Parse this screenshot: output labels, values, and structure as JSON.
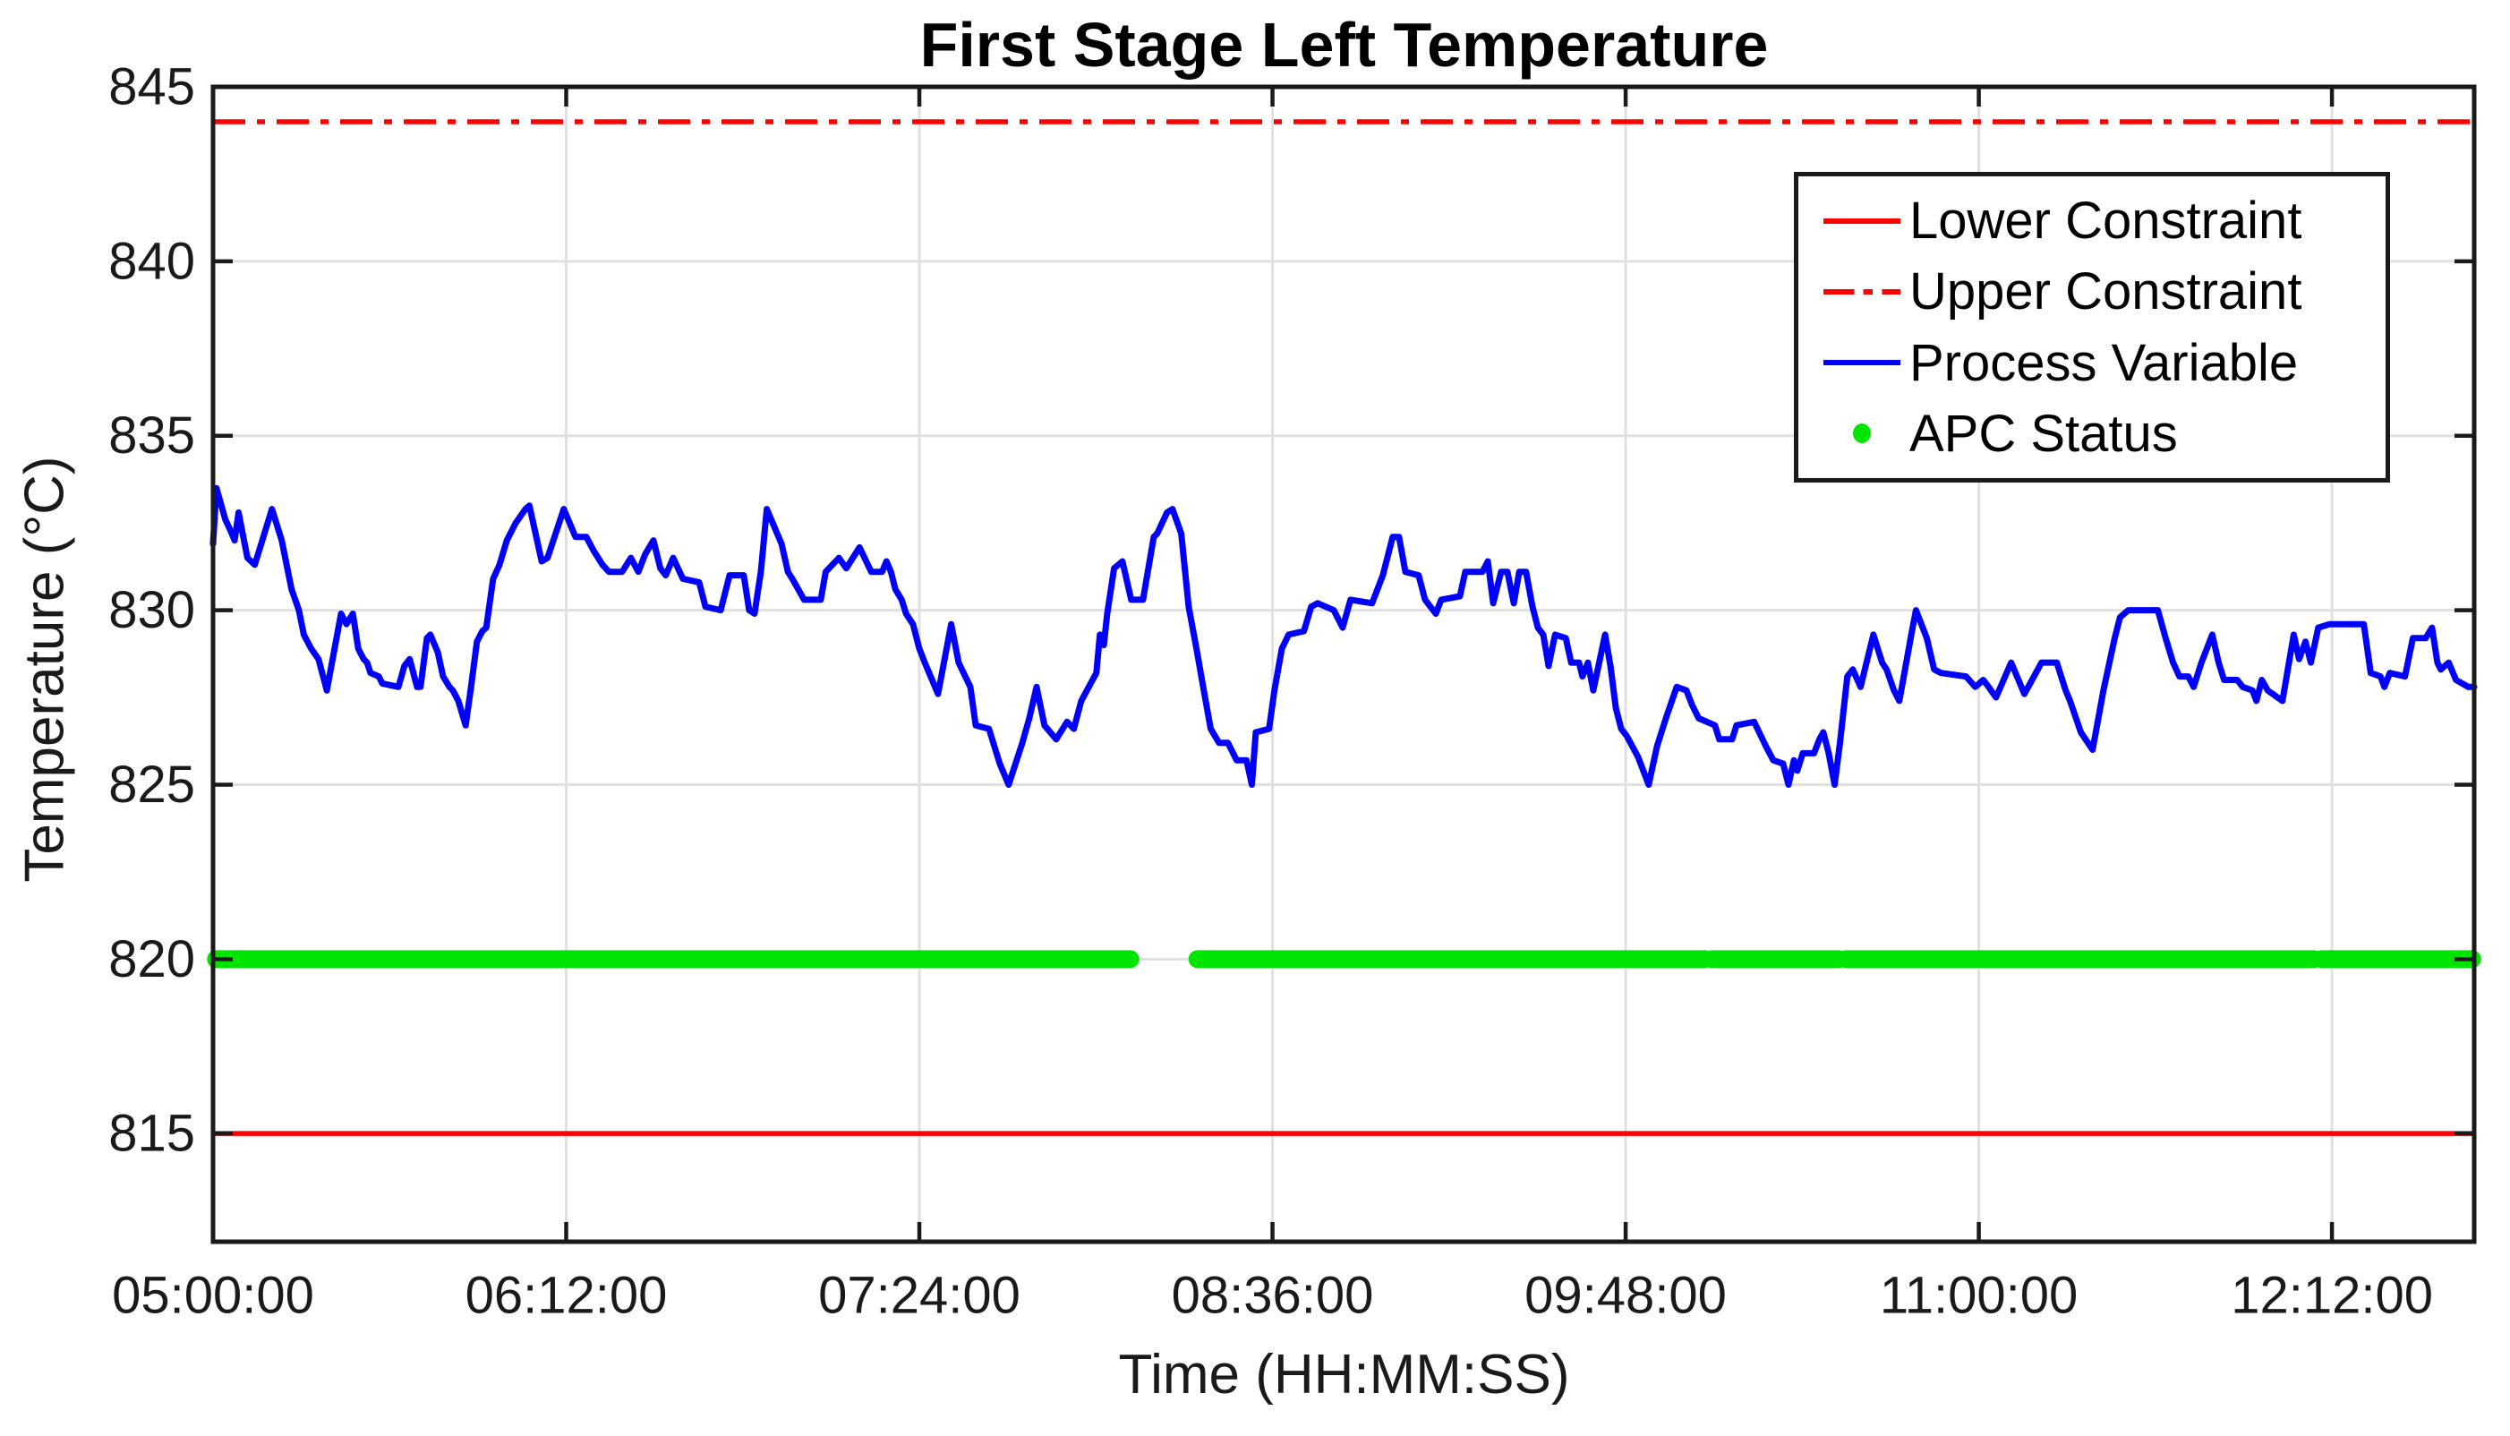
{
  "chart_data": {
    "type": "line",
    "title": "First Stage Left Temperature",
    "xlabel": "Time (HH:MM:SS)",
    "ylabel": "Temperature (°C)",
    "grid": true,
    "x_axis": {
      "unit": "minutes after 05:00:00",
      "xlim": [
        0,
        461
      ],
      "tick_minutes": [
        0,
        72,
        144,
        216,
        288,
        360,
        432
      ],
      "tick_labels": [
        "05:00:00",
        "06:12:00",
        "07:24:00",
        "08:36:00",
        "09:48:00",
        "11:00:00",
        "12:12:00"
      ]
    },
    "y_axis": {
      "ylim": [
        811.9,
        845
      ],
      "ticks": [
        815,
        820,
        825,
        830,
        835,
        840,
        845
      ]
    },
    "legend": {
      "position": "top-right",
      "entries": [
        {
          "label": "Lower Constraint",
          "marker": "solid-line",
          "color": "#ff0000"
        },
        {
          "label": "Upper Constraint",
          "marker": "dashdot-line",
          "color": "#ff0000"
        },
        {
          "label": "Process Variable",
          "marker": "solid-line",
          "color": "#0000ff"
        },
        {
          "label": "APC Status",
          "marker": "dot",
          "color": "#00e400"
        }
      ]
    },
    "series": [
      {
        "name": "Lower Constraint",
        "type": "hline",
        "y": 815,
        "style": "solid",
        "color": "#ff0000"
      },
      {
        "name": "Upper Constraint",
        "type": "hline",
        "y": 844,
        "style": "dashdot",
        "color": "#ff0000"
      },
      {
        "name": "APC Status",
        "type": "marker-band",
        "y": 820,
        "color": "#00e400",
        "segments_minutes": [
          [
            0.6,
            187.0
          ],
          [
            200.7,
            304.2
          ],
          [
            305.6,
            331.5
          ],
          [
            332.9,
            428.4
          ],
          [
            429.9,
            460.6
          ]
        ]
      },
      {
        "name": "Process Variable",
        "type": "line",
        "color": "#0000ff",
        "points": [
          [
            0,
            831.9
          ],
          [
            0.7,
            833.5
          ],
          [
            2.5,
            832.6
          ],
          [
            3.5,
            832.3
          ],
          [
            4.4,
            832.0
          ],
          [
            5.2,
            832.8
          ],
          [
            7.0,
            831.5
          ],
          [
            8.5,
            831.3
          ],
          [
            12.0,
            832.9
          ],
          [
            14.0,
            832.0
          ],
          [
            16.0,
            830.6
          ],
          [
            17.5,
            830.0
          ],
          [
            18.5,
            829.3
          ],
          [
            20.0,
            828.9
          ],
          [
            21.5,
            828.6
          ],
          [
            23.2,
            827.7
          ],
          [
            26.1,
            829.9
          ],
          [
            27.2,
            829.6
          ],
          [
            28.5,
            829.9
          ],
          [
            29.6,
            828.9
          ],
          [
            30.7,
            828.6
          ],
          [
            31.4,
            828.5
          ],
          [
            32.1,
            828.2
          ],
          [
            33.8,
            828.1
          ],
          [
            34.5,
            827.9
          ],
          [
            37.8,
            827.8
          ],
          [
            39.0,
            828.4
          ],
          [
            40.1,
            828.6
          ],
          [
            41.6,
            827.8
          ],
          [
            42.3,
            827.8
          ],
          [
            43.6,
            829.2
          ],
          [
            44.3,
            829.3
          ],
          [
            45.8,
            828.8
          ],
          [
            46.9,
            828.1
          ],
          [
            48.2,
            827.8
          ],
          [
            48.9,
            827.7
          ],
          [
            50.0,
            827.4
          ],
          [
            51.5,
            826.7
          ],
          [
            52.5,
            827.7
          ],
          [
            53.8,
            829.1
          ],
          [
            54.9,
            829.4
          ],
          [
            55.7,
            829.5
          ],
          [
            57.1,
            830.9
          ],
          [
            58.4,
            831.3
          ],
          [
            59.9,
            832.0
          ],
          [
            61.7,
            832.5
          ],
          [
            63.7,
            832.9
          ],
          [
            64.5,
            833.0
          ],
          [
            67.0,
            831.4
          ],
          [
            68.2,
            831.5
          ],
          [
            71.5,
            832.9
          ],
          [
            73.9,
            832.1
          ],
          [
            76.1,
            832.1
          ],
          [
            77.6,
            831.7
          ],
          [
            79.4,
            831.3
          ],
          [
            80.7,
            831.1
          ],
          [
            83.4,
            831.1
          ],
          [
            85.2,
            831.5
          ],
          [
            86.7,
            831.1
          ],
          [
            88.1,
            831.6
          ],
          [
            89.8,
            832.0
          ],
          [
            91.2,
            831.2
          ],
          [
            92.3,
            831.0
          ],
          [
            93.8,
            831.5
          ],
          [
            95.8,
            830.9
          ],
          [
            99.1,
            830.8
          ],
          [
            100.4,
            830.1
          ],
          [
            103.5,
            830.0
          ],
          [
            105.3,
            831.0
          ],
          [
            108.2,
            831.0
          ],
          [
            109.3,
            830.0
          ],
          [
            110.4,
            829.9
          ],
          [
            111.7,
            831.1
          ],
          [
            112.9,
            832.9
          ],
          [
            115.9,
            831.9
          ],
          [
            117.2,
            831.1
          ],
          [
            118.1,
            830.9
          ],
          [
            120.5,
            830.3
          ],
          [
            123.9,
            830.3
          ],
          [
            124.9,
            831.1
          ],
          [
            127.6,
            831.5
          ],
          [
            129.1,
            831.2
          ],
          [
            131.8,
            831.8
          ],
          [
            134.2,
            831.1
          ],
          [
            136.4,
            831.1
          ],
          [
            137.3,
            831.4
          ],
          [
            138.2,
            831.1
          ],
          [
            139.1,
            830.6
          ],
          [
            140.4,
            830.3
          ],
          [
            141.3,
            829.9
          ],
          [
            142.7,
            829.6
          ],
          [
            144.0,
            828.9
          ],
          [
            145.1,
            828.5
          ],
          [
            147.8,
            827.6
          ],
          [
            150.5,
            829.6
          ],
          [
            152.0,
            828.5
          ],
          [
            154.4,
            827.8
          ],
          [
            155.5,
            826.7
          ],
          [
            158.2,
            826.6
          ],
          [
            160.4,
            825.6
          ],
          [
            162.2,
            825.0
          ],
          [
            165.0,
            826.2
          ],
          [
            166.4,
            826.9
          ],
          [
            167.9,
            827.8
          ],
          [
            169.5,
            826.7
          ],
          [
            171.9,
            826.3
          ],
          [
            174.1,
            826.8
          ],
          [
            175.5,
            826.6
          ],
          [
            177.0,
            827.4
          ],
          [
            180.1,
            828.2
          ],
          [
            180.8,
            829.3
          ],
          [
            181.6,
            829.0
          ],
          [
            182.3,
            829.9
          ],
          [
            183.7,
            831.2
          ],
          [
            185.4,
            831.4
          ],
          [
            187.2,
            830.3
          ],
          [
            189.6,
            830.3
          ],
          [
            190.7,
            831.2
          ],
          [
            191.8,
            832.1
          ],
          [
            192.5,
            832.2
          ],
          [
            194.5,
            832.8
          ],
          [
            195.6,
            832.9
          ],
          [
            197.4,
            832.2
          ],
          [
            198.9,
            830.1
          ],
          [
            200.5,
            828.9
          ],
          [
            202.0,
            827.7
          ],
          [
            203.4,
            826.6
          ],
          [
            205.1,
            826.2
          ],
          [
            206.9,
            826.2
          ],
          [
            208.7,
            825.7
          ],
          [
            210.7,
            825.7
          ],
          [
            211.8,
            825.0
          ],
          [
            212.6,
            826.5
          ],
          [
            215.3,
            826.6
          ],
          [
            216.4,
            827.7
          ],
          [
            217.9,
            828.9
          ],
          [
            219.3,
            829.3
          ],
          [
            222.4,
            829.4
          ],
          [
            223.9,
            830.1
          ],
          [
            225.2,
            830.2
          ],
          [
            228.5,
            830.0
          ],
          [
            230.3,
            829.5
          ],
          [
            231.9,
            830.3
          ],
          [
            236.3,
            830.2
          ],
          [
            238.5,
            831.0
          ],
          [
            240.5,
            832.1
          ],
          [
            241.8,
            832.1
          ],
          [
            243.1,
            831.1
          ],
          [
            245.8,
            831.0
          ],
          [
            247.1,
            830.3
          ],
          [
            249.3,
            829.9
          ],
          [
            250.4,
            830.3
          ],
          [
            254.2,
            830.4
          ],
          [
            255.3,
            831.1
          ],
          [
            258.8,
            831.1
          ],
          [
            259.9,
            831.4
          ],
          [
            261.0,
            830.2
          ],
          [
            262.6,
            831.1
          ],
          [
            263.9,
            831.1
          ],
          [
            265.2,
            830.2
          ],
          [
            266.3,
            831.1
          ],
          [
            267.7,
            831.1
          ],
          [
            269.0,
            830.1
          ],
          [
            270.1,
            829.5
          ],
          [
            271.2,
            829.3
          ],
          [
            272.3,
            828.4
          ],
          [
            273.6,
            829.3
          ],
          [
            275.8,
            829.2
          ],
          [
            276.9,
            828.5
          ],
          [
            278.5,
            828.5
          ],
          [
            279.2,
            828.1
          ],
          [
            280.3,
            828.5
          ],
          [
            281.4,
            827.7
          ],
          [
            283.8,
            829.3
          ],
          [
            284.9,
            828.4
          ],
          [
            286.0,
            827.2
          ],
          [
            287.1,
            826.6
          ],
          [
            288.2,
            826.4
          ],
          [
            290.5,
            825.8
          ],
          [
            292.7,
            825.0
          ],
          [
            294.4,
            826.1
          ],
          [
            296.2,
            826.9
          ],
          [
            298.4,
            827.8
          ],
          [
            300.4,
            827.7
          ],
          [
            301.5,
            827.3
          ],
          [
            302.9,
            826.9
          ],
          [
            306.2,
            826.7
          ],
          [
            307.1,
            826.3
          ],
          [
            309.7,
            826.3
          ],
          [
            310.6,
            826.7
          ],
          [
            314.2,
            826.8
          ],
          [
            316.6,
            826.1
          ],
          [
            318.1,
            825.7
          ],
          [
            320.1,
            825.6
          ],
          [
            321.2,
            825.0
          ],
          [
            322.3,
            825.7
          ],
          [
            323.0,
            825.4
          ],
          [
            324.1,
            825.9
          ],
          [
            326.4,
            825.9
          ],
          [
            327.5,
            826.3
          ],
          [
            328.3,
            826.5
          ],
          [
            329.4,
            825.9
          ],
          [
            330.6,
            825.0
          ],
          [
            331.7,
            826.2
          ],
          [
            333.2,
            828.1
          ],
          [
            334.3,
            828.3
          ],
          [
            335.9,
            827.8
          ],
          [
            338.5,
            829.3
          ],
          [
            340.3,
            828.5
          ],
          [
            341.2,
            828.3
          ],
          [
            342.7,
            827.7
          ],
          [
            343.8,
            827.4
          ],
          [
            346.5,
            829.5
          ],
          [
            347.2,
            830.0
          ],
          [
            349.4,
            829.2
          ],
          [
            350.9,
            828.3
          ],
          [
            352.3,
            828.2
          ],
          [
            357.4,
            828.1
          ],
          [
            359.3,
            827.8
          ],
          [
            360.9,
            828.0
          ],
          [
            362.0,
            827.8
          ],
          [
            363.5,
            827.5
          ],
          [
            366.6,
            828.5
          ],
          [
            369.3,
            827.6
          ],
          [
            372.8,
            828.5
          ],
          [
            375.9,
            828.5
          ],
          [
            377.7,
            827.7
          ],
          [
            378.6,
            827.4
          ],
          [
            380.8,
            826.5
          ],
          [
            383.2,
            826.0
          ],
          [
            385.4,
            827.7
          ],
          [
            387.7,
            829.2
          ],
          [
            388.8,
            829.8
          ],
          [
            390.5,
            830.0
          ],
          [
            396.5,
            830.0
          ],
          [
            398.1,
            829.2
          ],
          [
            399.6,
            828.5
          ],
          [
            400.9,
            828.1
          ],
          [
            402.7,
            828.1
          ],
          [
            403.8,
            827.8
          ],
          [
            405.4,
            828.5
          ],
          [
            407.6,
            829.3
          ],
          [
            408.9,
            828.5
          ],
          [
            410.0,
            828.0
          ],
          [
            412.7,
            828.0
          ],
          [
            413.8,
            827.8
          ],
          [
            415.8,
            827.7
          ],
          [
            416.6,
            827.4
          ],
          [
            417.7,
            828.0
          ],
          [
            418.9,
            827.7
          ],
          [
            421.9,
            827.4
          ],
          [
            424.2,
            829.3
          ],
          [
            425.3,
            828.6
          ],
          [
            426.6,
            829.1
          ],
          [
            427.7,
            828.5
          ],
          [
            429.2,
            829.5
          ],
          [
            431.5,
            829.6
          ],
          [
            438.5,
            829.6
          ],
          [
            439.9,
            828.2
          ],
          [
            441.9,
            828.1
          ],
          [
            442.7,
            827.8
          ],
          [
            443.8,
            828.2
          ],
          [
            446.9,
            828.1
          ],
          [
            448.5,
            829.2
          ],
          [
            451.1,
            829.2
          ],
          [
            452.4,
            829.5
          ],
          [
            453.5,
            828.5
          ],
          [
            454.2,
            828.3
          ],
          [
            455.8,
            828.5
          ],
          [
            457.3,
            828.0
          ],
          [
            459.8,
            827.8
          ],
          [
            461.0,
            827.8
          ]
        ]
      }
    ],
    "style_colors": {
      "process_variable": "#0000ff",
      "constraint": "#ff0000",
      "apc_status": "#00e400",
      "gridline": "#e0e0e0",
      "axis": "#1a1a1a",
      "text": "#000000"
    }
  }
}
